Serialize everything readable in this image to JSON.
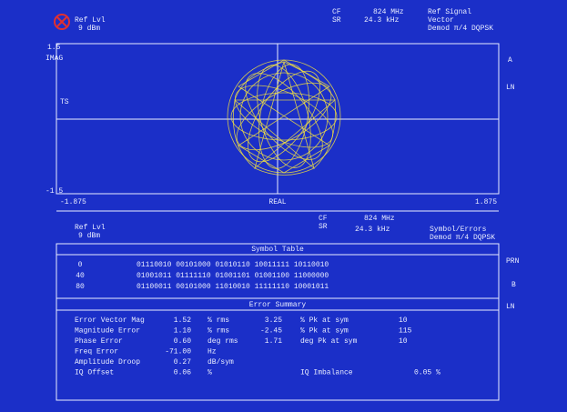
{
  "header": {
    "ref_lvl_label": "Ref Lvl",
    "ref_lvl": "9 dBm",
    "cf_label": "CF",
    "cf": "824 MHz",
    "ref_signal": "Ref Signal",
    "sr_label": "SR",
    "sr": "24.3 kHz",
    "mode": "Vector",
    "demod": "Demod π/4 DQPSK"
  },
  "plot": {
    "y_max": "1.5",
    "y_label": "IMAG",
    "trace": "TS",
    "y_min": "-1.5",
    "x_min": "-1.875",
    "x_label": "REAL",
    "x_max": "1.875",
    "side_a": "A",
    "side_ln": "LN"
  },
  "lower_header": {
    "ref_lvl_label": "Ref Lvl",
    "ref_lvl": "9 dBm",
    "cf_label": "CF",
    "cf": "824 MHz",
    "sr_label": "SR",
    "sr": "24.3 kHz",
    "mode": "Symbol/Errors",
    "demod": "Demod π/4 DQPSK"
  },
  "side": [
    "PRN",
    "B",
    "LN"
  ],
  "symbol_table": {
    "title": "Symbol Table",
    "rows": [
      [
        "0",
        "01110010 00101000 01010110 10011111 10110010"
      ],
      [
        "40",
        "01001011 01111110 01001101 01001100 11000000"
      ],
      [
        "80",
        "01100011 00101000 11010010 11111110 10001011"
      ]
    ]
  },
  "error_summary": {
    "title": "Error Summary",
    "rows": [
      [
        "Error Vector Mag",
        "1.52",
        "% rms",
        "3.25",
        "% Pk at sym",
        "10"
      ],
      [
        "Magnitude Error",
        "1.10",
        "% rms",
        "-2.45",
        "% Pk at sym",
        "115"
      ],
      [
        "Phase Error",
        "0.60",
        "deg rms",
        "1.71",
        "deg Pk at sym",
        "10"
      ],
      [
        "Freq Error",
        "-71.00",
        "Hz"
      ],
      [
        "Amplitude Droop",
        "0.27",
        "dB/sym"
      ],
      [
        "IQ Offset",
        "0.06",
        "%",
        "IQ Imbalance",
        "0.05 %"
      ]
    ]
  }
}
